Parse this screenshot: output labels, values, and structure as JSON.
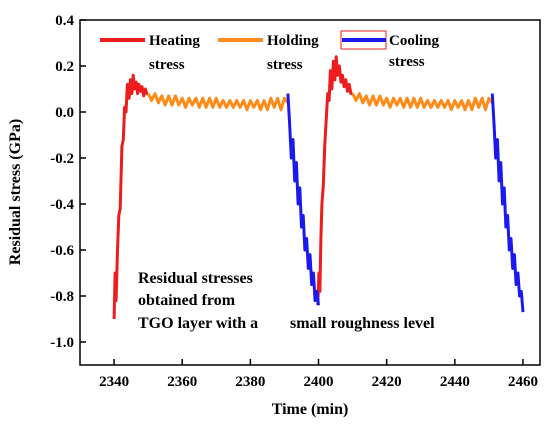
{
  "chart_data": {
    "type": "line",
    "xlabel": "Time (min)",
    "ylabel": "Residual stress (GPa)",
    "xlim": [
      2330,
      2465
    ],
    "ylim": [
      -1.1,
      0.4
    ],
    "xticks": [
      2340,
      2360,
      2380,
      2400,
      2420,
      2440,
      2460
    ],
    "xtick_labels": [
      "2340",
      "2360",
      "2380",
      "2400",
      "2420",
      "2440",
      "2460"
    ],
    "yticks": [
      0.4,
      0.2,
      0.0,
      -0.2,
      -0.4,
      -0.6,
      -0.8,
      -1.0
    ],
    "ytick_labels": [
      "0.4",
      "0.2",
      "0.0",
      "-0.2",
      "-0.4",
      "-0.6",
      "-0.8",
      "-1.0"
    ],
    "legend": [
      {
        "line1": "Heating",
        "line2": "stress",
        "color": "#ee1c1c"
      },
      {
        "line1": "Holding",
        "line2": "stress",
        "color": "#ff8c1a"
      },
      {
        "line1": "Cooling",
        "line2": "stress",
        "color": "#1a1aee"
      }
    ],
    "annotation": {
      "line1": "Residual stresses",
      "line2": "obtained from",
      "line3": "TGO layer with a",
      "line3b": "small roughness level"
    },
    "series": [
      {
        "name": "Heating stress",
        "color": "#ee1c1c",
        "x": [
          2340.0,
          2340.3,
          2340.6,
          2341.0,
          2341.4,
          2341.8,
          2342.3,
          2342.7,
          2343.1,
          2343.5,
          2343.9,
          2344.4,
          2344.8,
          2345.2,
          2345.6,
          2346.0,
          2346.5,
          2346.9,
          2347.3,
          2347.8,
          2348.2,
          2348.7,
          2349.2,
          2349.6,
          2350.0,
          2399.8,
          2400.1,
          2400.4,
          2400.7,
          2401.0,
          2401.4,
          2401.8,
          2402.2,
          2402.7,
          2403.1,
          2403.5,
          2403.9,
          2404.4,
          2404.8,
          2405.2,
          2405.6,
          2406.1,
          2406.6,
          2407.0,
          2407.5,
          2408.0,
          2408.5,
          2409.0,
          2409.5,
          2410.0
        ],
        "y": [
          -0.9,
          -0.7,
          -0.82,
          -0.6,
          -0.45,
          -0.42,
          -0.15,
          -0.12,
          0.02,
          0.0,
          0.12,
          0.06,
          0.14,
          0.08,
          0.16,
          0.1,
          0.13,
          0.08,
          0.12,
          0.09,
          0.11,
          0.07,
          0.1,
          0.08,
          0.08,
          -0.84,
          -0.7,
          -0.78,
          -0.55,
          -0.4,
          -0.32,
          -0.15,
          -0.05,
          0.08,
          0.05,
          0.18,
          0.1,
          0.22,
          0.14,
          0.24,
          0.16,
          0.2,
          0.13,
          0.16,
          0.11,
          0.14,
          0.09,
          0.12,
          0.08,
          0.08
        ]
      },
      {
        "name": "Holding stress",
        "color": "#ff8c1a",
        "x": [
          2350.0,
          2351.0,
          2352.0,
          2353.0,
          2354.0,
          2355.0,
          2356.0,
          2357.0,
          2358.0,
          2359.0,
          2360.0,
          2361.0,
          2362.0,
          2363.0,
          2364.0,
          2365.0,
          2366.0,
          2367.0,
          2368.0,
          2369.0,
          2370.0,
          2371.0,
          2372.0,
          2373.0,
          2374.0,
          2375.0,
          2376.0,
          2377.0,
          2378.0,
          2379.0,
          2380.0,
          2381.0,
          2382.0,
          2383.0,
          2384.0,
          2385.0,
          2386.0,
          2387.0,
          2388.0,
          2389.0,
          2390.0,
          2391.0,
          2410.0,
          2411.0,
          2412.0,
          2413.0,
          2414.0,
          2415.0,
          2416.0,
          2417.0,
          2418.0,
          2419.0,
          2420.0,
          2421.0,
          2422.0,
          2423.0,
          2424.0,
          2425.0,
          2426.0,
          2427.0,
          2428.0,
          2429.0,
          2430.0,
          2431.0,
          2432.0,
          2433.0,
          2434.0,
          2435.0,
          2436.0,
          2437.0,
          2438.0,
          2439.0,
          2440.0,
          2441.0,
          2442.0,
          2443.0,
          2444.0,
          2445.0,
          2446.0,
          2447.0,
          2448.0,
          2449.0,
          2450.0,
          2451.0
        ],
        "y": [
          0.08,
          0.05,
          0.08,
          0.04,
          0.07,
          0.03,
          0.07,
          0.03,
          0.07,
          0.03,
          0.06,
          0.02,
          0.06,
          0.03,
          0.06,
          0.02,
          0.06,
          0.02,
          0.06,
          0.02,
          0.06,
          0.02,
          0.05,
          0.02,
          0.05,
          0.02,
          0.05,
          0.02,
          0.05,
          0.01,
          0.05,
          0.02,
          0.05,
          0.01,
          0.05,
          0.01,
          0.06,
          0.02,
          0.06,
          0.01,
          0.06,
          0.04,
          0.08,
          0.05,
          0.08,
          0.04,
          0.07,
          0.03,
          0.07,
          0.03,
          0.07,
          0.03,
          0.06,
          0.02,
          0.06,
          0.03,
          0.06,
          0.02,
          0.06,
          0.02,
          0.06,
          0.02,
          0.06,
          0.02,
          0.05,
          0.02,
          0.05,
          0.02,
          0.05,
          0.02,
          0.05,
          0.01,
          0.05,
          0.02,
          0.05,
          0.01,
          0.05,
          0.01,
          0.06,
          0.02,
          0.06,
          0.01,
          0.06,
          0.04
        ]
      },
      {
        "name": "Cooling stress",
        "color": "#1a1aee",
        "x": [
          2391.0,
          2391.5,
          2392.0,
          2392.5,
          2393.0,
          2393.5,
          2394.0,
          2394.5,
          2395.0,
          2395.5,
          2396.0,
          2396.5,
          2397.0,
          2397.5,
          2398.0,
          2398.5,
          2399.0,
          2399.5,
          2400.0,
          2451.0,
          2451.5,
          2452.0,
          2452.5,
          2453.0,
          2453.5,
          2454.0,
          2454.5,
          2455.0,
          2455.5,
          2456.0,
          2456.5,
          2457.0,
          2457.5,
          2458.0,
          2458.5,
          2459.0,
          2459.5,
          2460.0
        ],
        "y": [
          0.08,
          -0.05,
          -0.2,
          -0.12,
          -0.3,
          -0.22,
          -0.4,
          -0.33,
          -0.5,
          -0.45,
          -0.6,
          -0.55,
          -0.68,
          -0.62,
          -0.75,
          -0.7,
          -0.82,
          -0.78,
          -0.84,
          0.08,
          -0.05,
          -0.2,
          -0.12,
          -0.3,
          -0.22,
          -0.4,
          -0.33,
          -0.5,
          -0.45,
          -0.6,
          -0.55,
          -0.68,
          -0.62,
          -0.75,
          -0.7,
          -0.8,
          -0.78,
          -0.87
        ]
      }
    ]
  }
}
